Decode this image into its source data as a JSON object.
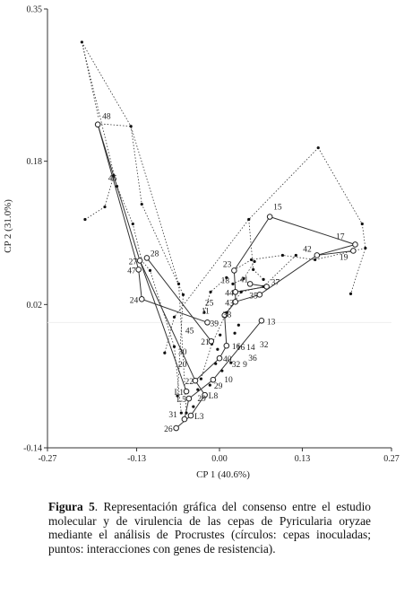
{
  "chart_data": {
    "type": "scatter",
    "title": "",
    "xlabel": "CP 1 (40.6%)",
    "ylabel": "CP 2 (31.0%)",
    "xlim": [
      -0.27,
      0.27
    ],
    "ylim": [
      -0.14,
      0.35
    ],
    "xticks": [
      "-0.27",
      "-0.13",
      "0.00",
      "0.13",
      "0.27"
    ],
    "xtick_values": [
      -0.27,
      -0.13,
      0.0,
      0.13,
      0.27
    ],
    "yticks": [
      "-0.14",
      "0.02",
      "0.18",
      "0.35"
    ],
    "ytick_values": [
      -0.14,
      0.02,
      0.18,
      0.35
    ],
    "grid": false,
    "legend": "none",
    "circles": [
      {
        "label": "48",
        "x": -0.191,
        "y": 0.221
      },
      {
        "label": "27",
        "x": -0.125,
        "y": 0.069
      },
      {
        "label": "28",
        "x": -0.114,
        "y": 0.072
      },
      {
        "label": "47",
        "x": -0.127,
        "y": 0.059
      },
      {
        "label": "24",
        "x": -0.122,
        "y": 0.026
      },
      {
        "label": "15",
        "x": 0.079,
        "y": 0.118
      },
      {
        "label": "17",
        "x": 0.213,
        "y": 0.087
      },
      {
        "label": "42",
        "x": 0.153,
        "y": 0.075
      },
      {
        "label": "19",
        "x": 0.21,
        "y": 0.08
      },
      {
        "label": "23",
        "x": 0.023,
        "y": 0.058
      },
      {
        "label": "41",
        "x": 0.048,
        "y": 0.043
      },
      {
        "label": "37",
        "x": 0.074,
        "y": 0.04
      },
      {
        "label": "44",
        "x": 0.025,
        "y": 0.034
      },
      {
        "label": "35",
        "x": 0.063,
        "y": 0.031
      },
      {
        "label": "43",
        "x": 0.025,
        "y": 0.023
      },
      {
        "label": "38",
        "x": 0.008,
        "y": 0.008
      },
      {
        "label": "13",
        "x": 0.066,
        "y": 0.002
      },
      {
        "label": "39",
        "x": -0.019,
        "y": 0.0
      },
      {
        "label": "21",
        "x": -0.013,
        "y": -0.021
      },
      {
        "label": "16",
        "x": 0.011,
        "y": -0.026
      },
      {
        "label": "40",
        "x": 0.0,
        "y": -0.04
      },
      {
        "label": "22",
        "x": -0.038,
        "y": -0.065
      },
      {
        "label": "29",
        "x": -0.01,
        "y": -0.064
      },
      {
        "label": "L8",
        "x": -0.023,
        "y": -0.081
      },
      {
        "label": "L1",
        "x": -0.052,
        "y": -0.077
      },
      {
        "label": "L5",
        "x": -0.048,
        "y": -0.085
      },
      {
        "label": "L3",
        "x": -0.045,
        "y": -0.104
      },
      {
        "label": "26",
        "x": -0.068,
        "y": -0.118
      },
      {
        "label": "31",
        "x": -0.055,
        "y": -0.108
      }
    ],
    "dot_labels": [
      {
        "label": "46",
        "x": -0.168,
        "y": 0.158
      },
      {
        "label": "11",
        "x": -0.022,
        "y": 0.01
      },
      {
        "label": "25",
        "x": -0.016,
        "y": 0.019
      },
      {
        "label": "18",
        "x": 0.009,
        "y": 0.044
      },
      {
        "label": "45",
        "x": -0.047,
        "y": -0.012
      },
      {
        "label": "30",
        "x": -0.058,
        "y": -0.036
      },
      {
        "label": "20",
        "x": -0.058,
        "y": -0.05
      },
      {
        "label": "16",
        "x": 0.033,
        "y": -0.031
      },
      {
        "label": "14",
        "x": 0.049,
        "y": -0.031
      },
      {
        "label": "32",
        "x": 0.07,
        "y": -0.028
      },
      {
        "label": "36",
        "x": 0.052,
        "y": -0.043
      },
      {
        "label": "32",
        "x": 0.026,
        "y": -0.05
      },
      {
        "label": "9",
        "x": 0.04,
        "y": -0.05
      },
      {
        "label": "10",
        "x": 0.014,
        "y": -0.067
      },
      {
        "label": "29",
        "x": -0.028,
        "y": -0.088
      }
    ],
    "caption": {
      "label": "Figura",
      "number": "5",
      "text": ". Representación gráfica del consenso entre el estudio molecular y de virulencia de las cepas de Pyricularia oryzae mediante el análisis de Procrustes (círculos: cepas inoculadas; puntos: interacciones con genes de resistencia)."
    }
  }
}
